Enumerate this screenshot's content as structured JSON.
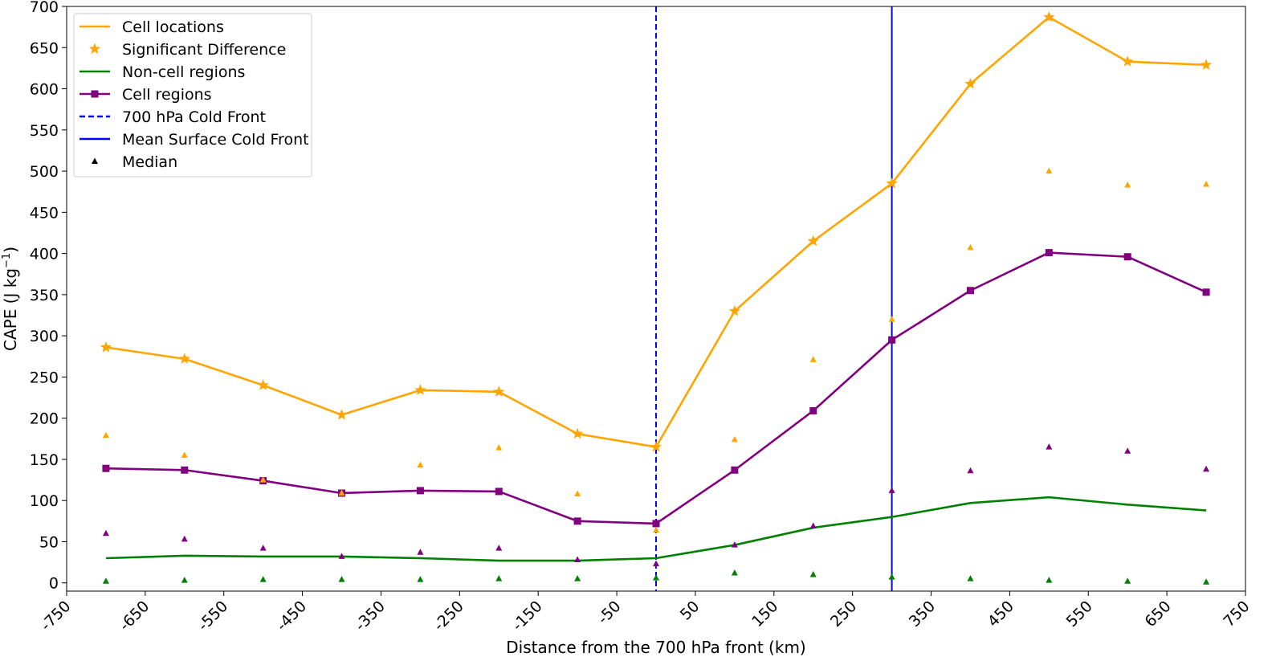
{
  "chart_data": {
    "type": "line",
    "xlabel": "Distance from the 700 hPa front (km)",
    "ylabel_main": "CAPE (J kg",
    "ylabel_sup": "−1",
    "ylabel_close": ")",
    "xlim": [
      -750,
      750
    ],
    "ylim": [
      -10,
      700
    ],
    "xticks": [
      -750,
      -650,
      -550,
      -450,
      -350,
      -250,
      -150,
      -50,
      50,
      150,
      250,
      350,
      450,
      550,
      650,
      750
    ],
    "xtick_labels": [
      "-750",
      "-650",
      "-550",
      "-450",
      "-350",
      "-250",
      "-150",
      "-50",
      "50",
      "150",
      "250",
      "350",
      "450",
      "550",
      "650",
      "750"
    ],
    "yticks": [
      0,
      50,
      100,
      150,
      200,
      250,
      300,
      350,
      400,
      450,
      500,
      550,
      600,
      650,
      700
    ],
    "ytick_labels": [
      "0",
      "50",
      "100",
      "150",
      "200",
      "250",
      "300",
      "350",
      "400",
      "450",
      "500",
      "550",
      "600",
      "650",
      "700"
    ],
    "x": [
      -700,
      -600,
      -500,
      -400,
      -300,
      -200,
      -100,
      0,
      100,
      200,
      300,
      400,
      500,
      600,
      700
    ],
    "series": [
      {
        "name": "Cell locations",
        "color": "#FFA500",
        "values": [
          286,
          272,
          240,
          204,
          234,
          232,
          181,
          165,
          330,
          415,
          485,
          606,
          687,
          633,
          629
        ],
        "significant": [
          true,
          true,
          true,
          true,
          true,
          true,
          true,
          true,
          true,
          true,
          true,
          true,
          true,
          true,
          true
        ],
        "median": [
          179,
          155,
          125,
          109,
          143,
          164,
          108,
          64,
          174,
          271,
          320,
          407,
          500,
          483,
          484
        ]
      },
      {
        "name": "Non-cell regions",
        "color": "#008000",
        "values": [
          30,
          33,
          32,
          32,
          30,
          27,
          27,
          30,
          46,
          67,
          80,
          97,
          104,
          95,
          88
        ],
        "median": [
          2,
          3,
          4,
          4,
          4,
          5,
          5,
          6,
          12,
          10,
          7,
          5,
          3,
          2,
          1
        ]
      },
      {
        "name": "Cell regions",
        "color": "#800080",
        "values": [
          139,
          137,
          124,
          109,
          112,
          111,
          75,
          72,
          137,
          209,
          295,
          355,
          401,
          396,
          353
        ],
        "median": [
          60,
          53,
          42,
          32,
          37,
          42,
          28,
          23,
          46,
          69,
          112,
          136,
          165,
          160,
          138
        ]
      }
    ],
    "vlines": [
      {
        "name": "700 hPa Cold Front",
        "x": 0,
        "color": "#0000FF",
        "style": "dashed"
      },
      {
        "name": "Mean Surface Cold Front",
        "x": 300,
        "color": "#0000FF",
        "style": "solid"
      }
    ],
    "legend": {
      "position": "top-left",
      "entries": [
        {
          "label": "Cell locations",
          "marker": "line",
          "color": "#FFA500"
        },
        {
          "label": "Significant Difference",
          "marker": "star",
          "color": "#FFA500"
        },
        {
          "label": "Non-cell regions",
          "marker": "line",
          "color": "#008000"
        },
        {
          "label": "Cell regions",
          "marker": "line-square",
          "color": "#800080"
        },
        {
          "label": "700 hPa Cold Front",
          "marker": "dashed-line",
          "color": "#0000FF"
        },
        {
          "label": "Mean Surface Cold Front",
          "marker": "line",
          "color": "#0000FF"
        },
        {
          "label": "Median",
          "marker": "triangle",
          "color": "#000000"
        }
      ]
    },
    "grid": false
  }
}
